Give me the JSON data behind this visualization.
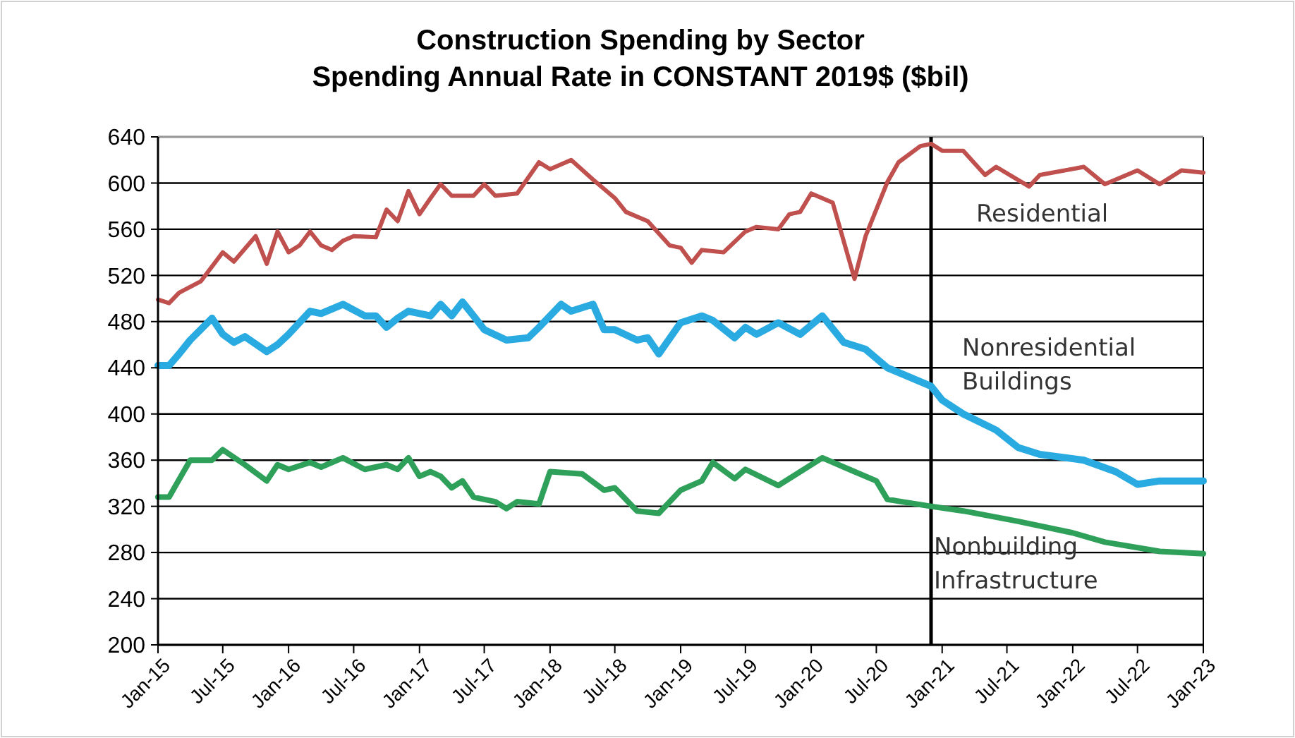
{
  "chart_data": {
    "type": "line",
    "title": "Construction Spending by Sector",
    "subtitle": "Spending Annual Rate in CONSTANT 2019$ ($bil)",
    "ylim": [
      200,
      640
    ],
    "yticks": [
      200,
      240,
      280,
      320,
      360,
      400,
      440,
      480,
      520,
      560,
      600,
      640
    ],
    "xlim": [
      "2015-01",
      "2023-01"
    ],
    "xticks": [
      {
        "value": "2015-01",
        "label": "Jan-15"
      },
      {
        "value": "2015-07",
        "label": "Jul-15"
      },
      {
        "value": "2016-01",
        "label": "Jan-16"
      },
      {
        "value": "2016-07",
        "label": "Jul-16"
      },
      {
        "value": "2017-01",
        "label": "Jan-17"
      },
      {
        "value": "2017-07",
        "label": "Jul-17"
      },
      {
        "value": "2018-01",
        "label": "Jan-18"
      },
      {
        "value": "2018-07",
        "label": "Jul-18"
      },
      {
        "value": "2019-01",
        "label": "Jan-19"
      },
      {
        "value": "2019-07",
        "label": "Jul-19"
      },
      {
        "value": "2020-01",
        "label": "Jan-20"
      },
      {
        "value": "2020-07",
        "label": "Jul-20"
      },
      {
        "value": "2021-01",
        "label": "Jan-21"
      },
      {
        "value": "2021-07",
        "label": "Jul-21"
      },
      {
        "value": "2022-01",
        "label": "Jan-22"
      },
      {
        "value": "2022-07",
        "label": "Jul-22"
      },
      {
        "value": "2023-01",
        "label": "Jan-23"
      }
    ],
    "grid": "y",
    "legend": false,
    "marker": "none",
    "line_style": "solid",
    "ref_lines": [
      {
        "axis": "x",
        "value": "2020-12",
        "color": "#000000"
      }
    ],
    "series": [
      {
        "name": "Residential",
        "color": "#c0504d",
        "x": [
          "2015-01",
          "2015-02",
          "2015-03",
          "2015-05",
          "2015-07",
          "2015-08",
          "2015-10",
          "2015-11",
          "2015-12",
          "2016-01",
          "2016-02",
          "2016-03",
          "2016-04",
          "2016-05",
          "2016-06",
          "2016-07",
          "2016-09",
          "2016-10",
          "2016-11",
          "2016-12",
          "2017-01",
          "2017-02",
          "2017-03",
          "2017-04",
          "2017-06",
          "2017-07",
          "2017-08",
          "2017-10",
          "2017-12",
          "2018-01",
          "2018-03",
          "2018-05",
          "2018-07",
          "2018-08",
          "2018-10",
          "2018-12",
          "2019-01",
          "2019-02",
          "2019-03",
          "2019-05",
          "2019-07",
          "2019-08",
          "2019-10",
          "2019-11",
          "2019-12",
          "2020-01",
          "2020-03",
          "2020-05",
          "2020-06",
          "2020-08",
          "2020-09",
          "2020-11",
          "2020-12",
          "2021-01",
          "2021-03",
          "2021-05",
          "2021-06",
          "2021-09",
          "2021-10",
          "2022-02",
          "2022-04",
          "2022-07",
          "2022-09",
          "2022-11",
          "2023-01"
        ],
        "values": [
          499,
          496,
          505,
          515,
          540,
          532,
          554,
          530,
          558,
          540,
          546,
          558,
          546,
          542,
          550,
          554,
          553,
          577,
          567,
          593,
          573,
          587,
          599,
          589,
          589,
          599,
          589,
          591,
          618,
          612,
          620,
          603,
          587,
          575,
          567,
          546,
          544,
          531,
          542,
          540,
          558,
          562,
          560,
          573,
          575,
          591,
          583,
          517,
          554,
          601,
          618,
          632,
          634,
          628,
          628,
          607,
          614,
          597,
          607,
          614,
          599,
          611,
          599,
          611,
          609
        ]
      },
      {
        "name": "Nonresidential Buildings",
        "color": "#29abe2",
        "x": [
          "2015-01",
          "2015-02",
          "2015-03",
          "2015-04",
          "2015-06",
          "2015-07",
          "2015-08",
          "2015-09",
          "2015-11",
          "2015-12",
          "2016-01",
          "2016-03",
          "2016-04",
          "2016-06",
          "2016-08",
          "2016-09",
          "2016-10",
          "2016-11",
          "2016-12",
          "2017-02",
          "2017-03",
          "2017-04",
          "2017-05",
          "2017-06",
          "2017-07",
          "2017-09",
          "2017-11",
          "2017-12",
          "2018-02",
          "2018-03",
          "2018-05",
          "2018-06",
          "2018-07",
          "2018-09",
          "2018-10",
          "2018-11",
          "2019-01",
          "2019-03",
          "2019-04",
          "2019-06",
          "2019-07",
          "2019-08",
          "2019-10",
          "2019-12",
          "2020-02",
          "2020-04",
          "2020-06",
          "2020-08",
          "2020-09",
          "2020-12",
          "2021-01",
          "2021-03",
          "2021-06",
          "2021-08",
          "2021-10",
          "2022-02",
          "2022-05",
          "2022-07",
          "2022-09",
          "2023-01"
        ],
        "values": [
          442,
          442,
          452,
          464,
          483,
          469,
          462,
          467,
          454,
          460,
          469,
          489,
          487,
          495,
          485,
          485,
          475,
          483,
          489,
          485,
          495,
          485,
          497,
          485,
          473,
          464,
          466,
          475,
          495,
          489,
          495,
          473,
          473,
          464,
          466,
          452,
          479,
          485,
          481,
          466,
          475,
          469,
          479,
          469,
          485,
          462,
          456,
          440,
          436,
          424,
          412,
          400,
          386,
          371,
          365,
          360,
          350,
          339,
          342,
          342
        ]
      },
      {
        "name": "Nonbuilding Infrastructure",
        "color": "#2ea05a",
        "x": [
          "2015-01",
          "2015-02",
          "2015-04",
          "2015-06",
          "2015-07",
          "2015-09",
          "2015-11",
          "2015-12",
          "2016-01",
          "2016-03",
          "2016-04",
          "2016-06",
          "2016-08",
          "2016-10",
          "2016-11",
          "2016-12",
          "2017-01",
          "2017-02",
          "2017-03",
          "2017-04",
          "2017-05",
          "2017-06",
          "2017-08",
          "2017-09",
          "2017-10",
          "2017-12",
          "2018-01",
          "2018-04",
          "2018-06",
          "2018-07",
          "2018-09",
          "2018-11",
          "2019-01",
          "2019-03",
          "2019-04",
          "2019-06",
          "2019-07",
          "2019-10",
          "2020-02",
          "2020-05",
          "2020-07",
          "2020-08",
          "2020-12",
          "2021-03",
          "2021-08",
          "2022-01",
          "2022-04",
          "2022-09",
          "2023-01"
        ],
        "values": [
          328,
          328,
          360,
          360,
          369,
          356,
          342,
          356,
          352,
          358,
          354,
          362,
          352,
          356,
          352,
          362,
          346,
          350,
          346,
          336,
          342,
          328,
          324,
          318,
          324,
          322,
          350,
          348,
          334,
          336,
          316,
          314,
          334,
          342,
          358,
          344,
          352,
          338,
          362,
          350,
          342,
          326,
          320,
          316,
          307,
          297,
          289,
          281,
          279
        ]
      }
    ]
  }
}
